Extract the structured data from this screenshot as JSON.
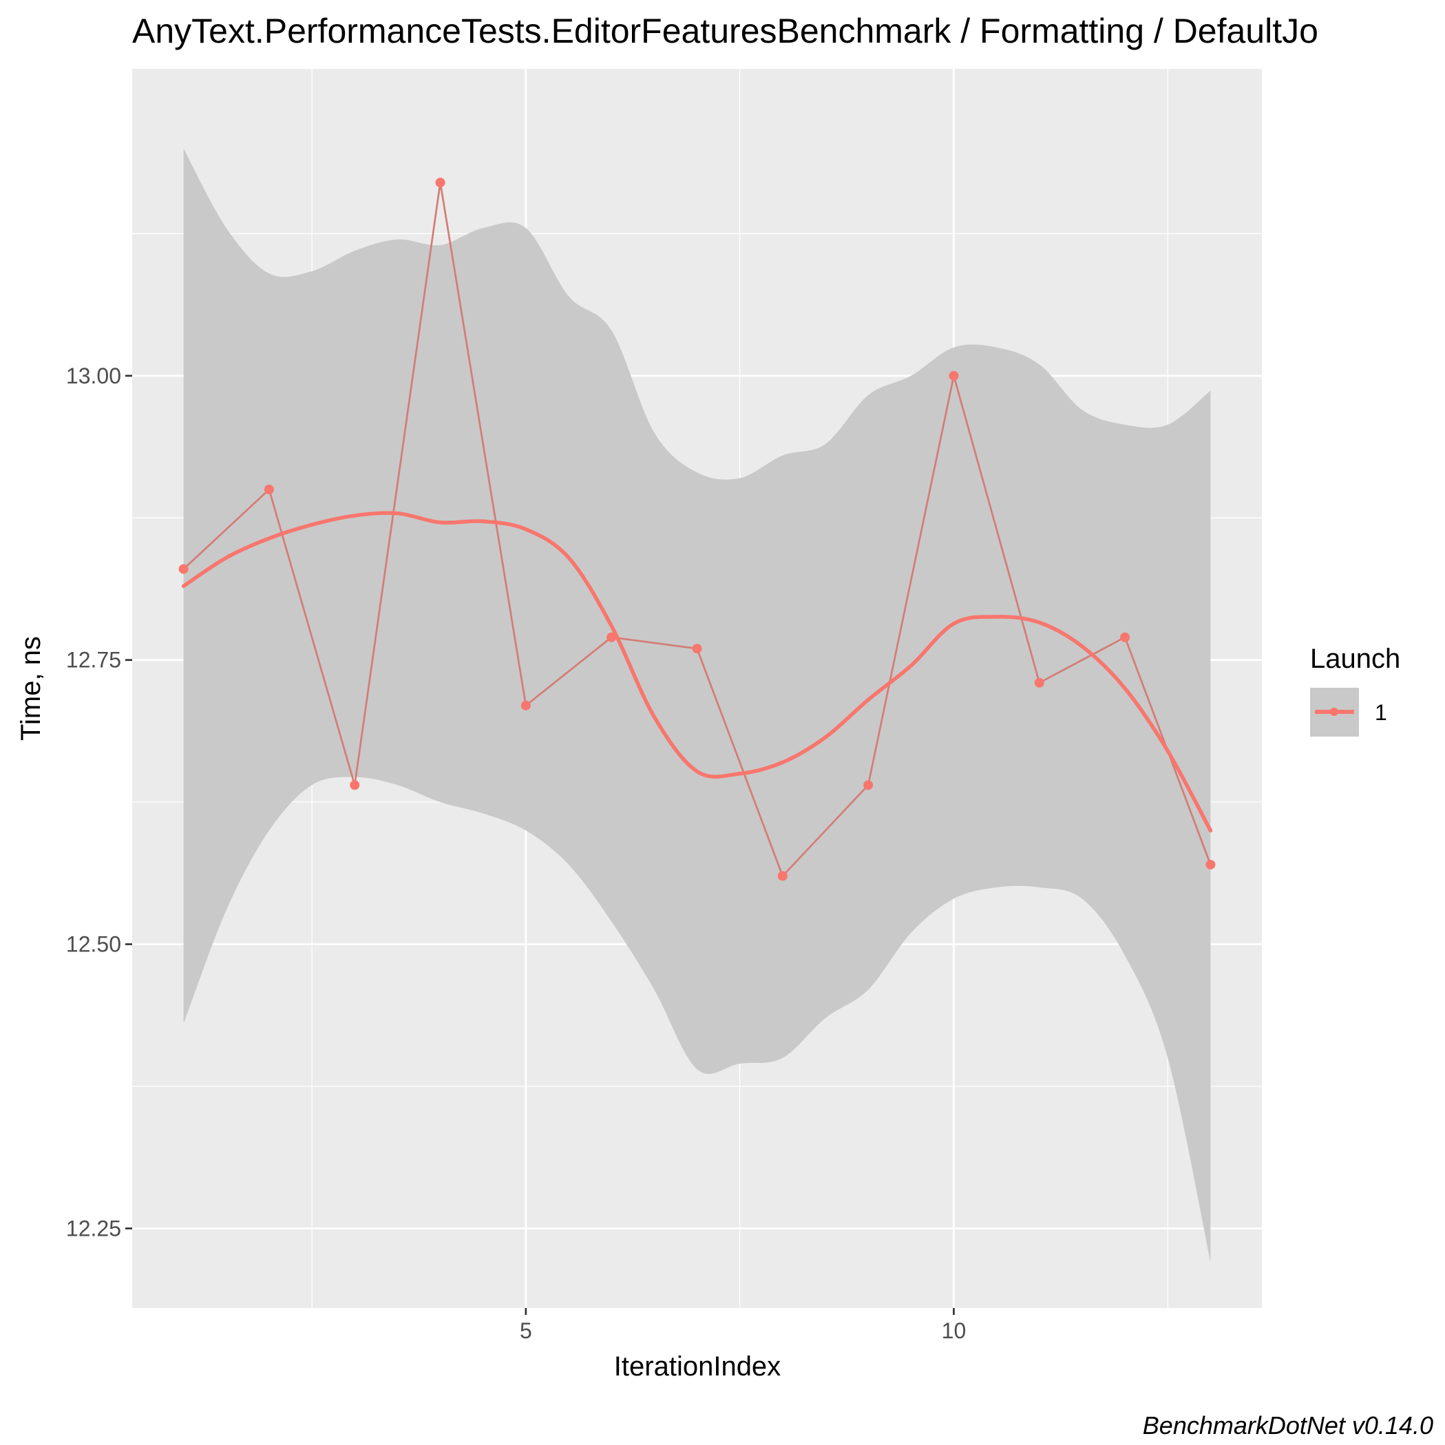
{
  "chart_data": {
    "type": "line",
    "title": "AnyText.PerformanceTests.EditorFeaturesBenchmark / Formatting / DefaultJo",
    "xlabel": "IterationIndex",
    "ylabel": "Time, ns",
    "xlim": [
      0.4,
      13.6
    ],
    "ylim": [
      12.18,
      13.27
    ],
    "x_ticks": [
      5,
      10
    ],
    "x_tick_labels": [
      "5",
      "10"
    ],
    "x_minor_ticks": [
      2.5,
      7.5,
      12.5
    ],
    "y_ticks": [
      12.25,
      12.5,
      12.75,
      13.0
    ],
    "y_tick_labels": [
      "12.25",
      "12.50",
      "12.75",
      "13.00"
    ],
    "y_minor_ticks": [
      12.375,
      12.625,
      12.875,
      13.125
    ],
    "grid": true,
    "legend": {
      "title": "Launch",
      "placement": "right",
      "entries": [
        "1"
      ]
    },
    "caption": "BenchmarkDotNet v0.14.0",
    "colors": {
      "series": "#F8766D",
      "raw_line": "#D47C76",
      "band": "#C9C9C9",
      "panel": "#EBEBEB",
      "grid": "#FFFFFF"
    },
    "series": [
      {
        "name": "1",
        "x": [
          1,
          2,
          3,
          4,
          5,
          6,
          7,
          8,
          9,
          10,
          11,
          12,
          13
        ],
        "values": [
          12.83,
          12.9,
          12.64,
          13.17,
          12.71,
          12.77,
          12.76,
          12.56,
          12.64,
          13.0,
          12.73,
          12.77,
          12.57
        ]
      }
    ],
    "smooth": {
      "x": [
        1,
        1.5,
        2,
        2.5,
        3,
        3.5,
        4,
        4.5,
        5,
        5.5,
        6,
        6.5,
        7,
        7.5,
        8,
        8.5,
        9,
        9.5,
        10,
        10.5,
        11,
        11.5,
        12,
        12.5,
        13
      ],
      "values": [
        12.815,
        12.84,
        12.857,
        12.869,
        12.877,
        12.879,
        12.871,
        12.872,
        12.865,
        12.84,
        12.78,
        12.7,
        12.652,
        12.65,
        12.66,
        12.682,
        12.715,
        12.745,
        12.782,
        12.788,
        12.783,
        12.762,
        12.725,
        12.67,
        12.6
      ],
      "lower": [
        12.43,
        12.53,
        12.6,
        12.64,
        12.647,
        12.64,
        12.625,
        12.615,
        12.6,
        12.57,
        12.52,
        12.46,
        12.39,
        12.395,
        12.4,
        12.435,
        12.46,
        12.51,
        12.54,
        12.55,
        12.55,
        12.54,
        12.49,
        12.4,
        12.22
      ],
      "upper": [
        13.2,
        13.13,
        13.09,
        13.092,
        13.11,
        13.12,
        13.115,
        13.13,
        13.13,
        13.07,
        13.04,
        12.95,
        12.915,
        12.91,
        12.93,
        12.94,
        12.983,
        13.0,
        13.025,
        13.025,
        13.01,
        12.97,
        12.957,
        12.957,
        12.987
      ]
    }
  }
}
